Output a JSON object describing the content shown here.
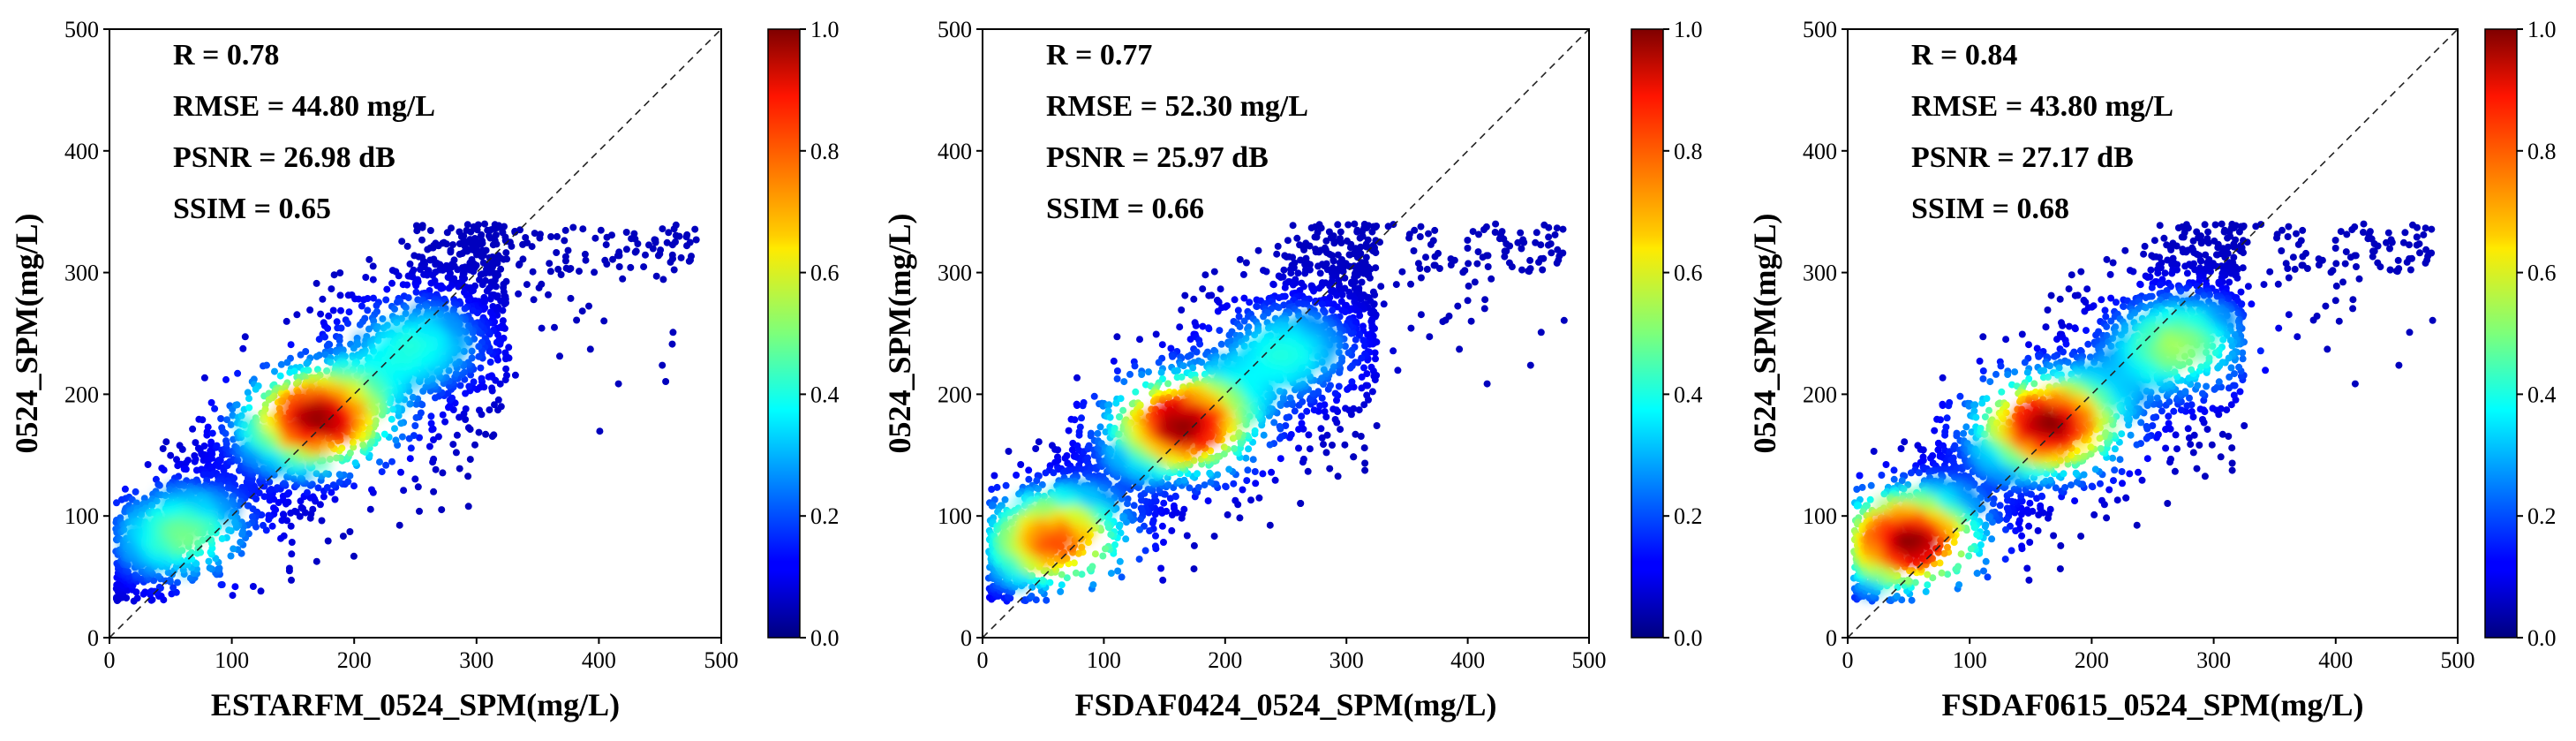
{
  "chart_data": [
    {
      "type": "scatter",
      "xlabel": "ESTARFM_0524_SPM(mg/L)",
      "ylabel": "0524_SPM(mg/L)",
      "xlim": [
        0,
        500
      ],
      "ylim": [
        0,
        500
      ],
      "xticks": [
        "0",
        "100",
        "200",
        "300",
        "400",
        "500"
      ],
      "yticks": [
        "0",
        "100",
        "200",
        "300",
        "400",
        "500"
      ],
      "reference_line": "1:1 dashed",
      "metrics": [
        "R = 0.78",
        "RMSE = 44.80 mg/L",
        "PSNR = 26.98 dB",
        "SSIM = 0.65"
      ],
      "colorbar": {
        "range": [
          0.0,
          1.0
        ],
        "ticks": [
          "0.0",
          "0.2",
          "0.4",
          "0.6",
          "0.8",
          "1.0"
        ],
        "colormap": "jet"
      },
      "density_centers": [
        {
          "x": 170,
          "y": 180,
          "weight": 1.0
        },
        {
          "x": 60,
          "y": 85,
          "weight": 0.45
        },
        {
          "x": 250,
          "y": 240,
          "weight": 0.35
        }
      ]
    },
    {
      "type": "scatter",
      "xlabel": "FSDAF0424_0524_SPM(mg/L)",
      "ylabel": "0524_SPM(mg/L)",
      "xlim": [
        0,
        500
      ],
      "ylim": [
        0,
        500
      ],
      "xticks": [
        "0",
        "100",
        "200",
        "300",
        "400",
        "500"
      ],
      "yticks": [
        "0",
        "100",
        "200",
        "300",
        "400",
        "500"
      ],
      "reference_line": "1:1 dashed",
      "metrics": [
        "R = 0.77",
        "RMSE = 52.30 mg/L",
        "PSNR = 25.97 dB",
        "SSIM = 0.66"
      ],
      "colorbar": {
        "range": [
          0.0,
          1.0
        ],
        "ticks": [
          "0.0",
          "0.2",
          "0.4",
          "0.6",
          "0.8",
          "1.0"
        ],
        "colormap": "jet"
      },
      "density_centers": [
        {
          "x": 165,
          "y": 175,
          "weight": 1.0
        },
        {
          "x": 60,
          "y": 80,
          "weight": 0.8
        },
        {
          "x": 250,
          "y": 235,
          "weight": 0.35
        }
      ]
    },
    {
      "type": "scatter",
      "xlabel": "FSDAF0615_0524_SPM(mg/L)",
      "ylabel": "0524_SPM(mg/L)",
      "xlim": [
        0,
        500
      ],
      "ylim": [
        0,
        500
      ],
      "xticks": [
        "0",
        "100",
        "200",
        "300",
        "400",
        "500"
      ],
      "yticks": [
        "0",
        "100",
        "200",
        "300",
        "400",
        "500"
      ],
      "reference_line": "1:1 dashed",
      "metrics": [
        "R = 0.84",
        "RMSE = 43.80 mg/L",
        "PSNR = 27.17 dB",
        "SSIM = 0.68"
      ],
      "colorbar": {
        "range": [
          0.0,
          1.0
        ],
        "ticks": [
          "0.0",
          "0.2",
          "0.4",
          "0.6",
          "0.8",
          "1.0"
        ],
        "colormap": "jet"
      },
      "density_centers": [
        {
          "x": 165,
          "y": 175,
          "weight": 1.0
        },
        {
          "x": 50,
          "y": 80,
          "weight": 1.0
        },
        {
          "x": 270,
          "y": 240,
          "weight": 0.5
        }
      ]
    }
  ]
}
